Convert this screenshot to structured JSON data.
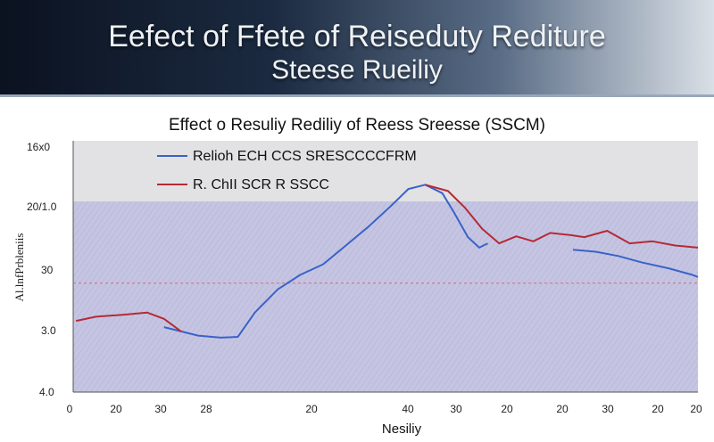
{
  "header": {
    "title_line1": "Eefect of Ffete  of Reiseduty Rediture",
    "title_line2": "Steese Rueiliy"
  },
  "chart_data": {
    "type": "line",
    "title": "Effect o Resuliy Rediliy of Reess Sreesse  (SSCM)",
    "xlabel": "Nesiliy",
    "ylabel": "Al.lnfPrbleniis",
    "x_ticks": [
      "0",
      "20",
      "30",
      "28",
      "20",
      "40",
      "30",
      "20",
      "20",
      "30",
      "20",
      "20"
    ],
    "y_ticks": [
      "16x0",
      "20/1.0",
      "30",
      "3.0",
      "4.0"
    ],
    "legend": [
      {
        "label": "Relioh ECH CCS SRESCCCCFRM",
        "color": "#3a62c8"
      },
      {
        "label": "R. ChII SCR R SSCC",
        "color": "#b52a35"
      }
    ],
    "x_domain": [
      0,
      11
    ],
    "y_domain": [
      0,
      6
    ],
    "series": [
      {
        "name": "Relioh ECH CCS SRESCCCCFRM",
        "color": "#3a62c8",
        "x": [
          1.6,
          1.9,
          2.2,
          2.6,
          2.9,
          3.2,
          3.6,
          4.0,
          4.4,
          4.8,
          5.2,
          5.6,
          5.9,
          6.2,
          6.5,
          6.7,
          6.95,
          7.15,
          7.3
        ],
        "y": [
          1.55,
          1.45,
          1.35,
          1.3,
          1.32,
          1.9,
          2.45,
          2.8,
          3.05,
          3.5,
          3.95,
          4.45,
          4.85,
          4.95,
          4.75,
          4.3,
          3.7,
          3.45,
          3.55
        ]
      },
      {
        "name": "Relioh ECH CCS SRESCCCCFRM (right)",
        "color": "#3a62c8",
        "x": [
          8.8,
          9.2,
          9.6,
          10.0,
          10.5,
          10.9,
          11.0
        ],
        "y": [
          3.4,
          3.35,
          3.25,
          3.1,
          2.95,
          2.8,
          2.75
        ]
      },
      {
        "name": "R. ChII SCR R SSCC",
        "color": "#b52a35",
        "x": [
          0.05,
          0.4,
          0.9,
          1.3,
          1.6,
          1.9
        ],
        "y": [
          1.7,
          1.8,
          1.85,
          1.9,
          1.75,
          1.45
        ]
      },
      {
        "name": "R. ChII SCR R SSCC (right)",
        "color": "#b52a35",
        "x": [
          6.2,
          6.6,
          6.9,
          7.2,
          7.5,
          7.8,
          8.1,
          8.4,
          8.75,
          9.0,
          9.4,
          9.8,
          10.2,
          10.6,
          11.0
        ],
        "y": [
          4.95,
          4.8,
          4.4,
          3.9,
          3.55,
          3.72,
          3.6,
          3.8,
          3.75,
          3.7,
          3.85,
          3.55,
          3.6,
          3.5,
          3.45
        ]
      }
    ],
    "threshold": {
      "y": 2.6,
      "color": "#d46a78"
    }
  }
}
